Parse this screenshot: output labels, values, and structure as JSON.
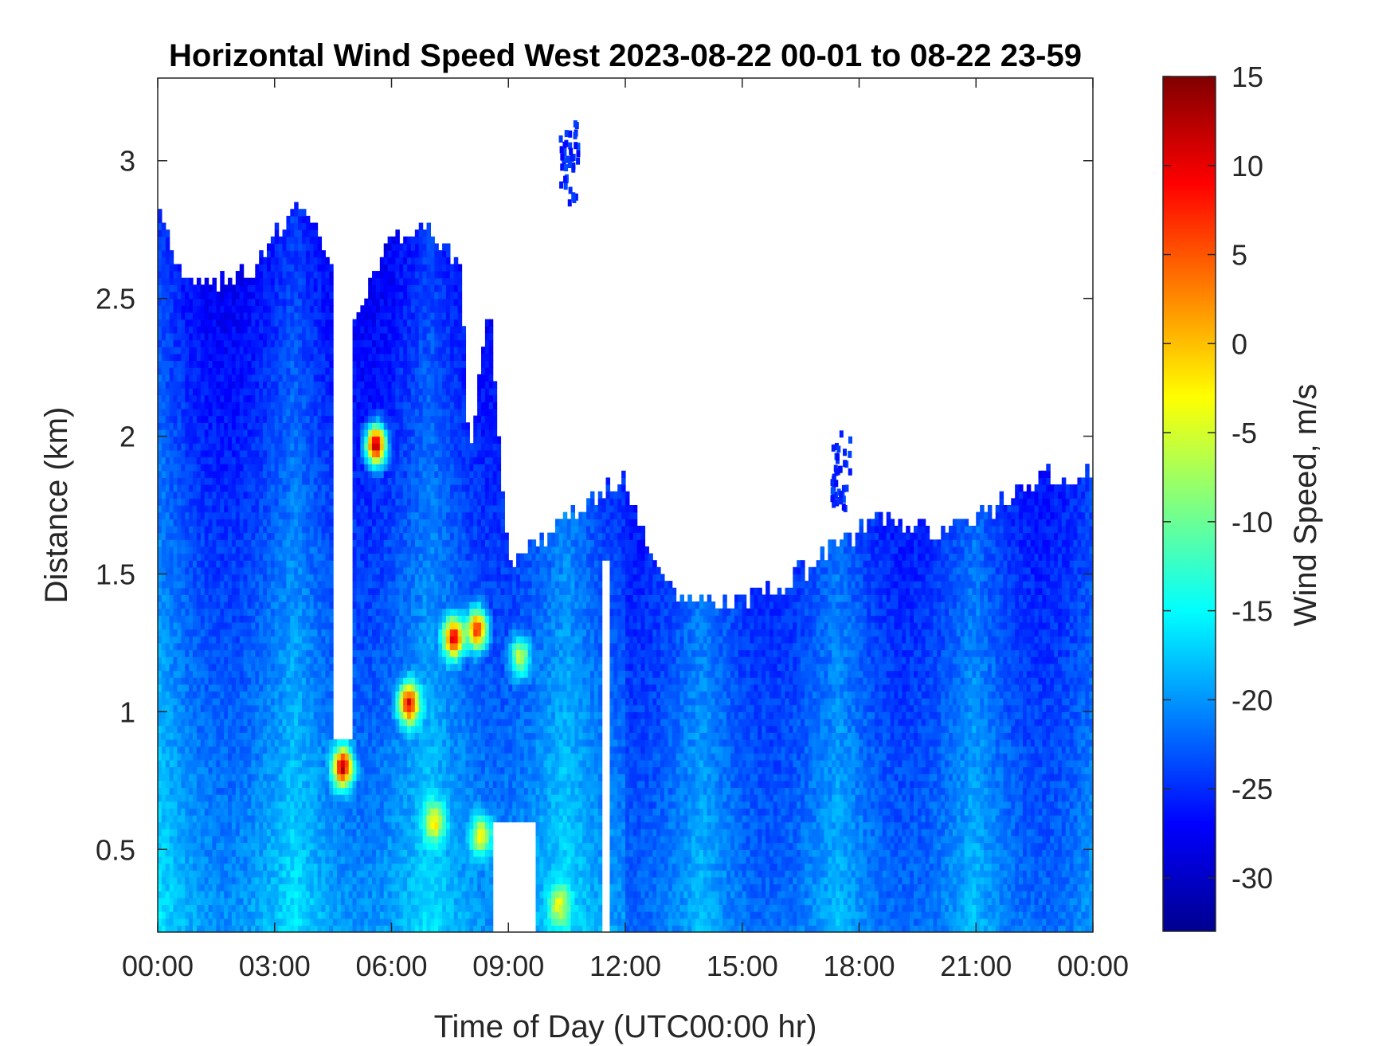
{
  "chart_data": {
    "type": "heatmap",
    "title": "Horizontal Wind Speed West 2023-08-22 00-01 to 08-22 23-59",
    "xlabel": "Time of Day (UTC00:00 hr)",
    "ylabel": "Distance (km)",
    "colorbar_label": "Wind Speed, m/s",
    "colormap": "jet",
    "xlim_hours": [
      0,
      24
    ],
    "ylim_km": [
      0.2,
      3.3
    ],
    "clim": [
      -33,
      15
    ],
    "x_ticks": [
      {
        "hours": 0,
        "label": "00:00"
      },
      {
        "hours": 3,
        "label": "03:00"
      },
      {
        "hours": 6,
        "label": "06:00"
      },
      {
        "hours": 9,
        "label": "09:00"
      },
      {
        "hours": 12,
        "label": "12:00"
      },
      {
        "hours": 15,
        "label": "15:00"
      },
      {
        "hours": 18,
        "label": "18:00"
      },
      {
        "hours": 21,
        "label": "21:00"
      },
      {
        "hours": 24,
        "label": "00:00"
      }
    ],
    "y_ticks": [
      {
        "km": 0.5,
        "label": "0.5"
      },
      {
        "km": 1,
        "label": "1"
      },
      {
        "km": 1.5,
        "label": "1.5"
      },
      {
        "km": 2,
        "label": "2"
      },
      {
        "km": 2.5,
        "label": "2.5"
      },
      {
        "km": 3,
        "label": "3"
      }
    ],
    "colorbar_ticks": [
      {
        "value": 15,
        "label": "15"
      },
      {
        "value": 10,
        "label": "10"
      },
      {
        "value": 5,
        "label": "5"
      },
      {
        "value": 0,
        "label": "0"
      },
      {
        "value": -5,
        "label": "-5"
      },
      {
        "value": -10,
        "label": "-10"
      },
      {
        "value": -15,
        "label": "-15"
      },
      {
        "value": -20,
        "label": "-20"
      },
      {
        "value": -25,
        "label": "-25"
      },
      {
        "value": -30,
        "label": "-30"
      }
    ],
    "data_top_km_by_time": [
      {
        "hours": 0.0,
        "km": 2.85
      },
      {
        "hours": 0.5,
        "km": 2.6
      },
      {
        "hours": 1.5,
        "km": 2.55
      },
      {
        "hours": 2.5,
        "km": 2.6
      },
      {
        "hours": 3.0,
        "km": 2.75
      },
      {
        "hours": 3.5,
        "km": 2.8
      },
      {
        "hours": 4.0,
        "km": 2.8
      },
      {
        "hours": 5.0,
        "km": 2.4
      },
      {
        "hours": 6.0,
        "km": 2.75
      },
      {
        "hours": 7.0,
        "km": 2.75
      },
      {
        "hours": 7.8,
        "km": 2.6
      },
      {
        "hours": 8.5,
        "km": 2.5
      },
      {
        "hours": 8.0,
        "km": 1.9
      },
      {
        "hours": 9.0,
        "km": 1.55
      },
      {
        "hours": 10.5,
        "km": 1.7
      },
      {
        "hours": 12.0,
        "km": 1.85
      },
      {
        "hours": 13.0,
        "km": 1.45
      },
      {
        "hours": 14.5,
        "km": 1.4
      },
      {
        "hours": 16.0,
        "km": 1.45
      },
      {
        "hours": 17.3,
        "km": 1.6
      },
      {
        "hours": 18.5,
        "km": 1.7
      },
      {
        "hours": 20.0,
        "km": 1.65
      },
      {
        "hours": 21.5,
        "km": 1.75
      },
      {
        "hours": 22.5,
        "km": 1.85
      },
      {
        "hours": 24.0,
        "km": 1.85
      }
    ],
    "no_data_gaps": [
      {
        "hours_from": 4.55,
        "hours_to": 5.0,
        "km_from": 0.9,
        "km_to": 3.3
      },
      {
        "hours_from": 8.6,
        "hours_to": 9.7,
        "km_from": 0.2,
        "km_to": 0.6
      },
      {
        "hours_from": 11.4,
        "hours_to": 11.6,
        "km_from": 0.2,
        "km_to": 1.55
      }
    ],
    "features": [
      {
        "hours": 4.75,
        "km": 0.8,
        "value": 12
      },
      {
        "hours": 5.6,
        "km": 1.97,
        "value": 12
      },
      {
        "hours": 6.45,
        "km": 1.03,
        "value": 10
      },
      {
        "hours": 7.6,
        "km": 1.27,
        "value": 10
      },
      {
        "hours": 8.2,
        "km": 1.3,
        "value": 8
      },
      {
        "hours": 7.1,
        "km": 0.6,
        "value": -2
      },
      {
        "hours": 8.3,
        "km": 0.55,
        "value": -3
      },
      {
        "hours": 10.3,
        "km": 0.3,
        "value": -4
      },
      {
        "hours": 9.3,
        "km": 1.2,
        "value": -6
      },
      {
        "hours": 10.5,
        "km": 3.0,
        "value": -25
      },
      {
        "hours": 17.5,
        "km": 1.9,
        "value": -25
      }
    ]
  }
}
